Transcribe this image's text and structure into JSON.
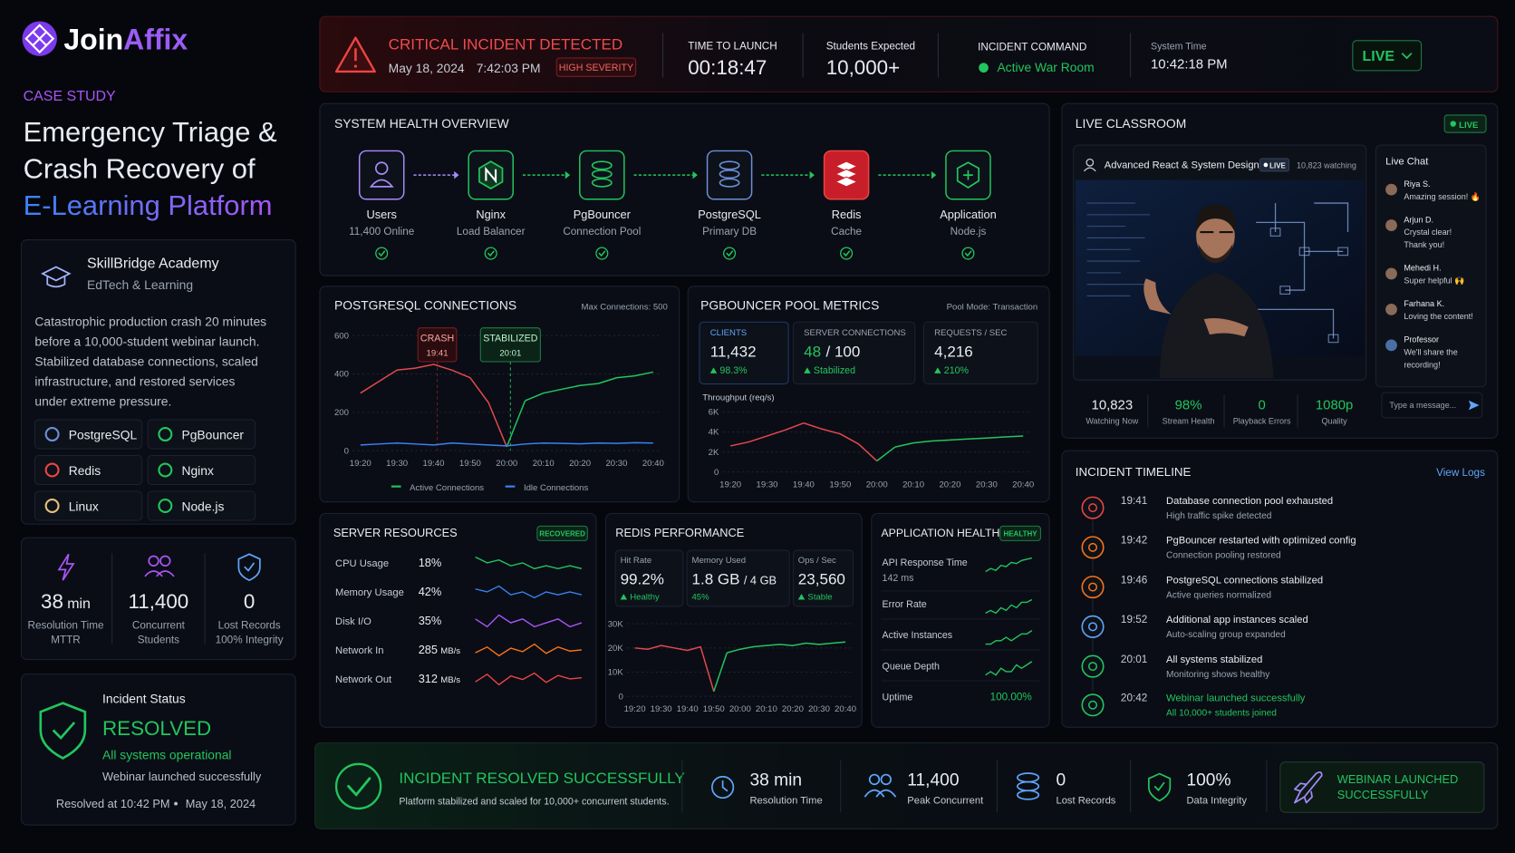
{
  "brand": [
    "Join",
    "Affix"
  ],
  "sidebar": {
    "eyebrow": "CASE STUDY",
    "title": [
      "Emergency Triage &",
      "Crash Recovery of",
      "E-Learning Platform"
    ],
    "org": {
      "name": "SkillBridge Academy",
      "sector": "EdTech & Learning"
    },
    "description": [
      "Catastrophic production crash 20 minutes",
      "before a 10,000-student webinar launch.",
      "Stabilized database connections, scaled",
      "infrastructure, and restored services",
      "under extreme pressure."
    ],
    "tech": [
      "PostgreSQL",
      "PgBouncer",
      "Redis",
      "Nginx",
      "Linux",
      "Node.js"
    ],
    "stats": [
      {
        "value": "38",
        "unit": "min",
        "label": "Resolution Time",
        "sub": "MTTR"
      },
      {
        "value": "11,400",
        "label": "Concurrent",
        "sub": "Students"
      },
      {
        "value": "0",
        "label": "Lost Records",
        "sub": "100% Integrity"
      }
    ],
    "status": {
      "label": "Incident Status",
      "state": "RESOLVED",
      "detail": "All systems operational",
      "note": "Webinar launched successfully",
      "resolved": "Resolved at 10:42 PM",
      "date": "May 18, 2024"
    }
  },
  "header": {
    "alert": {
      "title": "CRITICAL INCIDENT DETECTED",
      "date": "May 18, 2024",
      "time": "7:42:03 PM",
      "severity": "HIGH SEVERITY"
    },
    "metrics": [
      {
        "label": "TIME TO LAUNCH",
        "value": "00:18:47"
      },
      {
        "label": "Students Expected",
        "value": "10,000+"
      }
    ],
    "command": {
      "label": "INCIDENT COMMAND",
      "value": "Active War Room"
    },
    "system_time": {
      "label": "System Time",
      "value": "10:42:18 PM"
    },
    "live_button": "LIVE"
  },
  "system_health": {
    "title": "SYSTEM HEALTH OVERVIEW",
    "nodes": [
      {
        "label": "Users",
        "sub": "11,400 Online"
      },
      {
        "label": "Nginx",
        "sub": "Load Balancer"
      },
      {
        "label": "PgBouncer",
        "sub": "Connection Pool"
      },
      {
        "label": "PostgreSQL",
        "sub": "Primary DB"
      },
      {
        "label": "Redis",
        "sub": "Cache"
      },
      {
        "label": "Application",
        "sub": "Node.js"
      }
    ]
  },
  "chart_data": [
    {
      "type": "line",
      "title": "POSTGRESQL CONNECTIONS",
      "subtitle": "Max Connections: 500",
      "x": [
        "19:20",
        "19:25",
        "19:30",
        "19:35",
        "19:40",
        "19:45",
        "19:50",
        "19:55",
        "20:00",
        "20:05",
        "20:10",
        "20:15",
        "20:20",
        "20:25",
        "20:30",
        "20:35",
        "20:40"
      ],
      "xticks": [
        "19:20",
        "19:30",
        "19:40",
        "19:50",
        "20:00",
        "20:10",
        "20:20",
        "20:30",
        "20:40"
      ],
      "ylim": [
        0,
        600
      ],
      "yticks": [
        0,
        200,
        400,
        600
      ],
      "grid": true,
      "series": [
        {
          "color": "#e5484d",
          "values": [
            300,
            360,
            420,
            430,
            450,
            420,
            380,
            250,
            20,
            null,
            null,
            null,
            null,
            null,
            null,
            null,
            null
          ]
        },
        {
          "name": "Active Connections",
          "color": "#22c55e",
          "values": [
            null,
            null,
            null,
            null,
            null,
            null,
            null,
            null,
            null,
            260,
            300,
            320,
            340,
            350,
            380,
            390,
            410
          ]
        },
        {
          "name": "Idle Connections",
          "color": "#3b82f6",
          "values": [
            30,
            35,
            40,
            35,
            30,
            40,
            35,
            30,
            25,
            35,
            40,
            38,
            36,
            40,
            38,
            42,
            40
          ]
        }
      ],
      "annotations": [
        {
          "label": "CRASH",
          "time": "19:41"
        },
        {
          "label": "STABILIZED",
          "time": "20:01"
        }
      ]
    },
    {
      "type": "line",
      "title": "Throughput (req/s)",
      "x": [
        "19:20",
        "19:25",
        "19:30",
        "19:35",
        "19:40",
        "19:45",
        "19:50",
        "19:55",
        "20:00",
        "20:05",
        "20:10",
        "20:15",
        "20:20",
        "20:25",
        "20:30",
        "20:35",
        "20:40"
      ],
      "xticks": [
        "19:20",
        "19:30",
        "19:40",
        "19:50",
        "20:00",
        "20:10",
        "20:20",
        "20:30",
        "20:40"
      ],
      "ylim": [
        0,
        6000
      ],
      "yticks": [
        0,
        {
          "value": 2000,
          "label": "2K"
        },
        {
          "value": 4000,
          "label": "4K"
        },
        {
          "value": 6000,
          "label": "6K"
        }
      ],
      "grid": true,
      "series": [
        {
          "color": "#e5484d",
          "values": [
            2600,
            3000,
            3600,
            4200,
            4900,
            4300,
            3800,
            2800,
            1100,
            null,
            null,
            null,
            null,
            null,
            null,
            null,
            null
          ]
        },
        {
          "color": "#22c55e",
          "values": [
            null,
            null,
            null,
            null,
            null,
            null,
            null,
            null,
            null,
            2500,
            2900,
            3100,
            3200,
            3300,
            3400,
            3500,
            3600
          ]
        }
      ]
    },
    {
      "type": "line",
      "x": [
        "19:20",
        "19:25",
        "19:30",
        "19:35",
        "19:40",
        "19:45",
        "19:50",
        "19:55",
        "20:00",
        "20:05",
        "20:10",
        "20:15",
        "20:20",
        "20:25",
        "20:30",
        "20:35",
        "20:40"
      ],
      "xticks": [
        "19:20",
        "19:30",
        "19:40",
        "19:50",
        "20:00",
        "20:10",
        "20:20",
        "20:30",
        "20:40"
      ],
      "ylim": [
        0,
        30000
      ],
      "yticks": [
        0,
        {
          "value": 10000,
          "label": "10K"
        },
        {
          "value": 20000,
          "label": "20K"
        },
        {
          "value": 30000,
          "label": "30K"
        }
      ],
      "grid": true,
      "series": [
        {
          "color": "#e5484d",
          "values": [
            20000,
            19500,
            21000,
            20000,
            19000,
            20500,
            2000,
            null,
            null,
            null,
            null,
            null,
            null,
            null,
            null,
            null,
            null
          ]
        },
        {
          "color": "#22c55e",
          "values": [
            null,
            null,
            null,
            null,
            null,
            null,
            null,
            18000,
            19500,
            20500,
            21000,
            21500,
            21000,
            22000,
            21500,
            22000,
            22500
          ]
        }
      ]
    }
  ],
  "pgbouncer": {
    "title": "PGBOUNCER POOL METRICS",
    "note": "Pool Mode: Transaction",
    "cards": [
      {
        "label": "CLIENTS",
        "value": "11,432",
        "delta": "98.3%"
      },
      {
        "label": "SERVER CONNECTIONS",
        "value": "48",
        "of": "/ 100",
        "delta": "Stabilized"
      },
      {
        "label": "REQUESTS / SEC",
        "value": "4,216",
        "delta": "210%"
      }
    ]
  },
  "server_resources": {
    "title": "SERVER RESOURCES",
    "badge": "RECOVERED",
    "rows": [
      {
        "label": "CPU Usage",
        "value": "18%",
        "color": "#22c55e",
        "trend": [
          22,
          20,
          21,
          19,
          20,
          18,
          19,
          18,
          19,
          18
        ]
      },
      {
        "label": "Memory Usage",
        "value": "42%",
        "color": "#3b82f6",
        "trend": [
          44,
          43,
          45,
          42,
          43,
          41,
          43,
          42,
          43,
          42
        ]
      },
      {
        "label": "Disk I/O",
        "value": "35%",
        "color": "#a855f7",
        "trend": [
          36,
          34,
          37,
          35,
          36,
          34,
          35,
          36,
          34,
          35
        ]
      },
      {
        "label": "Network In",
        "value": "285",
        "unit": "MB/s",
        "color": "#f97316",
        "trend": [
          280,
          290,
          275,
          288,
          282,
          295,
          279,
          290,
          283,
          285
        ]
      },
      {
        "label": "Network Out",
        "value": "312",
        "unit": "MB/s",
        "color": "#ef4444",
        "trend": [
          305,
          318,
          300,
          315,
          309,
          320,
          304,
          316,
          310,
          312
        ]
      }
    ]
  },
  "redis": {
    "title": "REDIS PERFORMANCE",
    "cards": [
      {
        "label": "Hit Rate",
        "value": "99.2%",
        "sub": "Healthy",
        "arrow": true
      },
      {
        "label": "Memory Used",
        "value": "1.8 GB",
        "of": "/ 4 GB",
        "sub": "45%",
        "arrow": false
      },
      {
        "label": "Ops / Sec",
        "value": "23,560",
        "sub": "Stable",
        "arrow": true
      }
    ]
  },
  "app_health": {
    "title": "APPLICATION HEALTH",
    "badge": "HEALTHY",
    "rows": [
      {
        "label": "API Response Time",
        "sub": "142 ms",
        "trend": [
          120,
          125,
          122,
          130,
          128,
          135,
          133,
          138,
          140,
          142
        ]
      },
      {
        "label": "Error Rate",
        "trend": [
          2,
          3,
          2,
          4,
          3,
          5,
          4,
          6,
          6,
          7
        ]
      },
      {
        "label": "Active Instances",
        "trend": [
          4,
          4,
          5,
          5,
          6,
          5,
          6,
          7,
          7,
          8
        ]
      },
      {
        "label": "Queue Depth",
        "trend": [
          3,
          4,
          3,
          5,
          4,
          4,
          6,
          5,
          6,
          7
        ]
      },
      {
        "label": "Uptime",
        "value": "100.00%"
      }
    ]
  },
  "classroom": {
    "title": "LIVE CLASSROOM",
    "badge": "LIVE",
    "stream": {
      "title": "Advanced React & System Design",
      "badge": "LIVE",
      "viewers": "10,823 watching"
    },
    "chat": {
      "title": "Live Chat",
      "messages": [
        {
          "name": "Riya S.",
          "lines": [
            "Amazing session! 🔥"
          ]
        },
        {
          "name": "Arjun D.",
          "lines": [
            "Crystal clear!",
            "Thank you!"
          ]
        },
        {
          "name": "Mehedi H.",
          "lines": [
            "Super helpful 🙌"
          ]
        },
        {
          "name": "Farhana K.",
          "lines": [
            "Loving the content!"
          ]
        },
        {
          "name": "Professor",
          "lines": [
            "We'll share the",
            "recording!"
          ]
        }
      ],
      "placeholder": "Type a message..."
    },
    "stats": [
      {
        "value": "10,823",
        "label": "Watching Now"
      },
      {
        "value": "98%",
        "label": "Stream Health"
      },
      {
        "value": "0",
        "label": "Playback Errors"
      },
      {
        "value": "1080p",
        "label": "Quality"
      }
    ]
  },
  "timeline": {
    "title": "INCIDENT TIMELINE",
    "link": "View Logs",
    "events": [
      {
        "time": "19:41",
        "title": "Database connection pool exhausted",
        "detail": "High traffic spike detected"
      },
      {
        "time": "19:42",
        "title": "PgBouncer restarted with optimized config",
        "detail": "Connection pooling restored"
      },
      {
        "time": "19:46",
        "title": "PostgreSQL connections stabilized",
        "detail": "Active queries normalized"
      },
      {
        "time": "19:52",
        "title": "Additional app instances scaled",
        "detail": "Auto-scaling group expanded"
      },
      {
        "time": "20:01",
        "title": "All systems stabilized",
        "detail": "Monitoring shows healthy"
      },
      {
        "time": "20:42",
        "title": "Webinar launched successfully",
        "detail": "All 10,000+ students joined"
      }
    ]
  },
  "footer": {
    "title": "INCIDENT RESOLVED SUCCESSFULLY",
    "subtitle": "Platform stabilized and scaled for 10,000+ concurrent students.",
    "metrics": [
      {
        "value": "38 min",
        "label": "Resolution Time"
      },
      {
        "value": "11,400",
        "label": "Peak Concurrent"
      },
      {
        "value": "0",
        "label": "Lost Records"
      },
      {
        "value": "100%",
        "label": "Data Integrity"
      }
    ],
    "banner": [
      "WEBINAR LAUNCHED",
      "SUCCESSFULLY"
    ]
  }
}
